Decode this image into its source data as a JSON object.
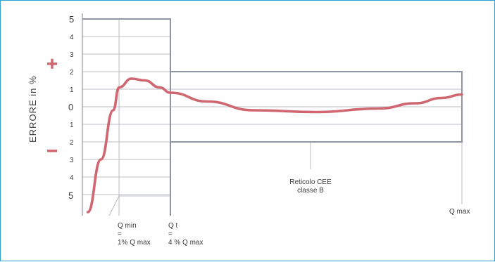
{
  "chart_data": {
    "type": "line",
    "ylabel": "ERRORE in %",
    "plus_sign": "+",
    "minus_sign": "−",
    "y_ticks_upper": [
      "5",
      "4",
      "3",
      "2",
      "1"
    ],
    "y_tick_zero": "0",
    "y_ticks_lower": [
      "1",
      "2",
      "3",
      "4",
      "5"
    ],
    "x_labels": {
      "qmin_1": "Q min",
      "qmin_2": "=",
      "qmin_3": "1% Q max",
      "qt_1": "Q t",
      "qt_2": "=",
      "qt_3": "4 % Q max",
      "qmax": "Q max"
    },
    "annotation": [
      "Reticolo CEE",
      "classe B"
    ],
    "curve_x_percent_qmax": [
      0.3,
      0.5,
      0.8,
      1.0,
      1.4,
      2.0,
      3.0,
      4.0,
      6.0,
      10.0,
      20.0,
      40.0,
      60.0,
      80.0,
      100.0
    ],
    "curve_y_error_percent": [
      -6.0,
      -3.0,
      -0.2,
      1.1,
      1.6,
      1.5,
      1.1,
      0.8,
      0.3,
      -0.2,
      -0.3,
      -0.1,
      0.2,
      0.5,
      0.7
    ],
    "tolerance_envelope": {
      "below_qt_percent": [
        -5,
        5
      ],
      "from_qt_to_qmax_percent": [
        -2,
        2
      ]
    },
    "ylim": [
      -5,
      5
    ]
  }
}
